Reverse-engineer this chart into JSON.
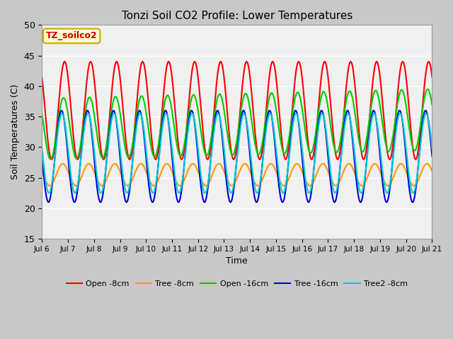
{
  "title": "Tonzi Soil CO2 Profile: Lower Temperatures",
  "xlabel": "Time",
  "ylabel": "Soil Temperatures (C)",
  "ylim": [
    15,
    50
  ],
  "fig_bg": "#c8c8c8",
  "plot_bg": "#f0f0f0",
  "grid_color": "#ffffff",
  "annotation_text": "TZ_soilco2",
  "annotation_bg": "#ffffcc",
  "annotation_border": "#ccaa00",
  "annotation_color": "#cc0000",
  "x_tick_labels": [
    "Jul 6",
    "Jul 7",
    "Jul 8",
    "Jul 9",
    "Jul 10",
    "Jul 11",
    "Jul 12",
    "Jul 13",
    "Jul 14",
    "Jul 15",
    "Jul 16",
    "Jul 17",
    "Jul 18",
    "Jul 19",
    "Jul 20",
    "Jul 21"
  ],
  "legend": [
    {
      "label": "Open -8cm",
      "color": "#ff0000"
    },
    {
      "label": "Tree -8cm",
      "color": "#ff9900"
    },
    {
      "label": "Open -16cm",
      "color": "#00cc00"
    },
    {
      "label": "Tree -16cm",
      "color": "#0000dd"
    },
    {
      "label": "Tree2 -8cm",
      "color": "#00cccc"
    }
  ],
  "n_days": 15,
  "series": {
    "open_8cm": {
      "amplitude": 8.0,
      "mean": 36.0,
      "phase_shift": 0.62,
      "color": "#ff0000",
      "trend": 0.0
    },
    "tree_8cm": {
      "amplitude": 1.8,
      "mean": 25.5,
      "phase_shift": 0.55,
      "color": "#ff9900",
      "trend": 0.0
    },
    "open_16cm": {
      "amplitude": 5.0,
      "mean": 33.0,
      "phase_shift": 0.58,
      "color": "#00cc00",
      "trend": 0.1
    },
    "tree_16cm": {
      "amplitude": 7.5,
      "mean": 28.5,
      "phase_shift": 0.5,
      "color": "#0000dd",
      "trend": 0.0
    },
    "tree2_8cm": {
      "amplitude": 6.5,
      "mean": 29.0,
      "phase_shift": 0.52,
      "color": "#00cccc",
      "trend": 0.0
    }
  }
}
